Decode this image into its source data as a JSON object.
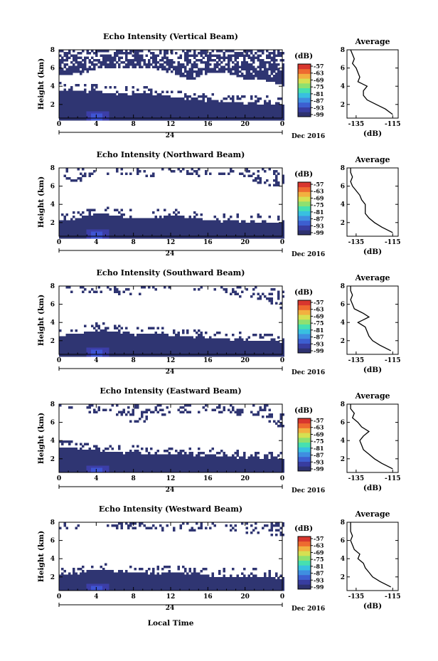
{
  "figure": {
    "xlabel": "Local Time",
    "date_label": "Dec 2016",
    "day_label": "24",
    "heatmap_colors": [
      "#2f3572",
      "#3c3ea8",
      "#3f55d4"
    ],
    "colorbar_colors": [
      "#2e3270",
      "#383da0",
      "#3d5fd0",
      "#3f8ee0",
      "#38c0e0",
      "#46e0b0",
      "#8ee070",
      "#d6e052",
      "#f2b040",
      "#ee6a30",
      "#d8362e"
    ]
  },
  "chart_data": [
    {
      "type": "heatmap",
      "title": "Echo Intensity (Vertical Beam)",
      "ylabel": "Height (km)",
      "xlim": [
        0,
        24
      ],
      "ylim": [
        0.5,
        8
      ],
      "xticks": [
        "0",
        "4",
        "8",
        "12",
        "16",
        "20",
        "0"
      ],
      "yticks": [
        "2",
        "4",
        "6",
        "8"
      ],
      "colorbar": {
        "label": "(dB)",
        "ticks": [
          "-57",
          "-63",
          "-69",
          "-75",
          "-81",
          "-87",
          "-93",
          "-99"
        ]
      },
      "layers": [
        {
          "name": "low",
          "x": [
            0,
            2,
            4,
            6,
            8,
            10,
            12,
            14,
            16,
            18,
            20,
            22,
            24
          ],
          "top": [
            3.8,
            3.6,
            3.6,
            3.3,
            3.3,
            3.2,
            3.0,
            2.6,
            2.6,
            2.4,
            2.3,
            2.2,
            2.1
          ],
          "density": 1.0
        },
        {
          "name": "high",
          "x": [
            0,
            2,
            4,
            6,
            8,
            10,
            12,
            14,
            16,
            18,
            20,
            22,
            24
          ],
          "base": [
            5.4,
            5.4,
            6.1,
            6.0,
            6.1,
            6.1,
            5.6,
            4.8,
            5.5,
            5.6,
            4.9,
            4.8,
            4.2
          ],
          "density": 0.85
        }
      ],
      "average": {
        "title": "Average",
        "xlabel": "(dB)",
        "xticks": [
          "-135",
          "-115"
        ],
        "xlim": [
          -140,
          -112
        ],
        "yticks": [
          "2",
          "4",
          "6",
          "8"
        ],
        "ylim": [
          0.5,
          8
        ],
        "height": [
          0.9,
          1.5,
          2.0,
          2.5,
          3.0,
          3.5,
          4.0,
          4.5,
          5.0,
          5.5,
          6.0,
          6.5,
          7.0,
          7.5,
          8.0
        ],
        "value": [
          -115,
          -119,
          -124,
          -129,
          -131,
          -131,
          -129,
          -134,
          -133,
          -134,
          -135,
          -137,
          -136,
          -137,
          -138
        ]
      }
    },
    {
      "type": "heatmap",
      "title": "Echo Intensity (Northward Beam)",
      "ylabel": "Height (km)",
      "xlim": [
        0,
        24
      ],
      "ylim": [
        0.5,
        8
      ],
      "xticks": [
        "0",
        "4",
        "8",
        "12",
        "16",
        "20",
        "0"
      ],
      "yticks": [
        "2",
        "4",
        "6",
        "8"
      ],
      "colorbar": {
        "label": "(dB)",
        "ticks": [
          "-57",
          "-63",
          "-69",
          "-75",
          "-81",
          "-87",
          "-93",
          "-99"
        ]
      },
      "layers": [
        {
          "name": "low",
          "x": [
            0,
            2,
            4,
            6,
            8,
            10,
            12,
            14,
            16,
            18,
            20,
            22,
            24
          ],
          "top": [
            2.3,
            2.6,
            3.1,
            2.9,
            2.6,
            2.6,
            2.9,
            2.6,
            2.4,
            2.3,
            2.2,
            2.1,
            2.0
          ],
          "density": 1.0
        },
        {
          "name": "high",
          "x": [
            0,
            2,
            4,
            6,
            8,
            10,
            12,
            14,
            16,
            18,
            20,
            22,
            24
          ],
          "base": [
            7.0,
            6.5,
            7.6,
            7.4,
            7.3,
            7.2,
            7.6,
            7.0,
            7.4,
            7.5,
            7.0,
            6.2,
            6.0
          ],
          "density": 0.35
        }
      ],
      "average": {
        "title": "Average",
        "xlabel": "(dB)",
        "xticks": [
          "-135",
          "-115"
        ],
        "xlim": [
          -140,
          -112
        ],
        "yticks": [
          "2",
          "4",
          "6",
          "8"
        ],
        "ylim": [
          0.5,
          8
        ],
        "height": [
          0.9,
          1.5,
          2.0,
          2.5,
          3.0,
          3.5,
          4.0,
          4.5,
          5.0,
          5.5,
          6.0,
          6.5,
          7.0,
          7.5,
          8.0
        ],
        "value": [
          -115,
          -121,
          -125,
          -128,
          -130,
          -130,
          -130,
          -132,
          -133,
          -135,
          -137,
          -138,
          -137,
          -138,
          -138
        ]
      }
    },
    {
      "type": "heatmap",
      "title": "Echo Intensity (Southward Beam)",
      "ylabel": "Height (km)",
      "xlim": [
        0,
        24
      ],
      "ylim": [
        0.5,
        8
      ],
      "xticks": [
        "0",
        "4",
        "8",
        "12",
        "16",
        "20",
        "0"
      ],
      "yticks": [
        "2",
        "4",
        "6",
        "8"
      ],
      "colorbar": {
        "label": "(dB)",
        "ticks": [
          "-57",
          "-63",
          "-69",
          "-75",
          "-81",
          "-87",
          "-93",
          "-99"
        ]
      },
      "layers": [
        {
          "name": "low",
          "x": [
            0,
            2,
            4,
            6,
            8,
            10,
            12,
            14,
            16,
            18,
            20,
            22,
            24
          ],
          "top": [
            2.6,
            2.9,
            3.3,
            3.1,
            2.8,
            2.9,
            2.8,
            2.6,
            2.4,
            2.3,
            2.2,
            2.1,
            2.0
          ],
          "density": 1.0
        },
        {
          "name": "high",
          "x": [
            0,
            2,
            4,
            6,
            8,
            10,
            12,
            14,
            16,
            18,
            20,
            22,
            24
          ],
          "base": [
            7.3,
            7.2,
            7.4,
            7.2,
            7.0,
            7.6,
            7.6,
            7.5,
            7.7,
            7.3,
            6.6,
            6.4,
            5.4
          ],
          "density": 0.3
        }
      ],
      "average": {
        "title": "Average",
        "xlabel": "(dB)",
        "xticks": [
          "-135",
          "-115"
        ],
        "xlim": [
          -140,
          -112
        ],
        "yticks": [
          "2",
          "4",
          "6",
          "8"
        ],
        "ylim": [
          0.5,
          8
        ],
        "height": [
          0.9,
          1.5,
          2.0,
          2.5,
          3.0,
          3.5,
          4.0,
          4.3,
          4.6,
          5.0,
          5.5,
          6.0,
          6.5,
          7.0,
          7.5,
          8.0
        ],
        "value": [
          -116,
          -122,
          -126,
          -128,
          -129,
          -130,
          -134,
          -131,
          -128,
          -131,
          -136,
          -137,
          -138,
          -137,
          -138,
          -138
        ]
      }
    },
    {
      "type": "heatmap",
      "title": "Echo Intensity (Eastward Beam)",
      "ylabel": "Height (km)",
      "xlim": [
        0,
        24
      ],
      "ylim": [
        0.5,
        8
      ],
      "xticks": [
        "0",
        "4",
        "8",
        "12",
        "16",
        "20",
        "0"
      ],
      "yticks": [
        "2",
        "4",
        "6",
        "8"
      ],
      "colorbar": {
        "label": "(dB)",
        "ticks": [
          "-57",
          "-63",
          "-69",
          "-75",
          "-81",
          "-87",
          "-93",
          "-99"
        ]
      },
      "layers": [
        {
          "name": "low",
          "x": [
            0,
            2,
            4,
            6,
            8,
            10,
            12,
            14,
            16,
            18,
            20,
            22,
            24
          ],
          "top": [
            3.5,
            3.3,
            3.0,
            2.8,
            2.8,
            2.7,
            2.6,
            2.6,
            2.5,
            2.4,
            2.3,
            2.2,
            2.1
          ],
          "density": 1.0
        },
        {
          "name": "high",
          "x": [
            0,
            2,
            4,
            6,
            8,
            10,
            12,
            14,
            16,
            18,
            20,
            22,
            24
          ],
          "base": [
            7.4,
            7.3,
            7.2,
            7.0,
            6.0,
            6.4,
            7.2,
            7.2,
            7.3,
            7.1,
            6.8,
            6.5,
            5.2
          ],
          "density": 0.4
        }
      ],
      "average": {
        "title": "Average",
        "xlabel": "(dB)",
        "xticks": [
          "-135",
          "-115"
        ],
        "xlim": [
          -140,
          -112
        ],
        "yticks": [
          "2",
          "4",
          "6",
          "8"
        ],
        "ylim": [
          0.5,
          8
        ],
        "height": [
          0.9,
          1.5,
          2.0,
          2.5,
          3.0,
          3.5,
          4.0,
          4.5,
          5.0,
          5.5,
          6.0,
          6.5,
          7.0,
          7.5,
          8.0
        ],
        "value": [
          -115,
          -121,
          -125,
          -128,
          -131,
          -132,
          -133,
          -131,
          -128,
          -132,
          -134,
          -137,
          -136,
          -138,
          -138
        ]
      }
    },
    {
      "type": "heatmap",
      "title": "Echo Intensity (Westward Beam)",
      "ylabel": "Height (km)",
      "xlim": [
        0,
        24
      ],
      "ylim": [
        0.5,
        8
      ],
      "xticks": [
        "0",
        "4",
        "8",
        "12",
        "16",
        "20",
        "0"
      ],
      "yticks": [
        "2",
        "4",
        "6",
        "8"
      ],
      "colorbar": {
        "label": "(dB)",
        "ticks": [
          "-57",
          "-63",
          "-69",
          "-75",
          "-81",
          "-87",
          "-93",
          "-99"
        ]
      },
      "layers": [
        {
          "name": "low",
          "x": [
            0,
            2,
            4,
            6,
            8,
            10,
            12,
            14,
            16,
            18,
            20,
            22,
            24
          ],
          "top": [
            2.3,
            2.6,
            2.9,
            2.8,
            2.6,
            2.5,
            2.6,
            2.5,
            2.3,
            2.2,
            2.2,
            2.1,
            2.0
          ],
          "density": 1.0
        },
        {
          "name": "high",
          "x": [
            0,
            2,
            4,
            6,
            8,
            10,
            12,
            14,
            16,
            18,
            20,
            22,
            24
          ],
          "base": [
            7.4,
            7.5,
            7.5,
            7.5,
            7.4,
            7.4,
            7.0,
            7.2,
            7.4,
            7.3,
            7.0,
            6.8,
            6.6
          ],
          "density": 0.35
        }
      ],
      "average": {
        "title": "Average",
        "xlabel": "(dB)",
        "xticks": [
          "-135",
          "-115"
        ],
        "xlim": [
          -140,
          -112
        ],
        "yticks": [
          "2",
          "4",
          "6",
          "8"
        ],
        "ylim": [
          0.5,
          8
        ],
        "height": [
          0.9,
          1.5,
          2.0,
          2.5,
          3.0,
          3.5,
          4.0,
          4.5,
          5.0,
          5.5,
          6.0,
          6.5,
          7.0,
          7.5,
          8.0
        ],
        "value": [
          -116,
          -122,
          -126,
          -128,
          -130,
          -131,
          -134,
          -133,
          -136,
          -137,
          -138,
          -137,
          -138,
          -138,
          -138
        ]
      }
    }
  ]
}
